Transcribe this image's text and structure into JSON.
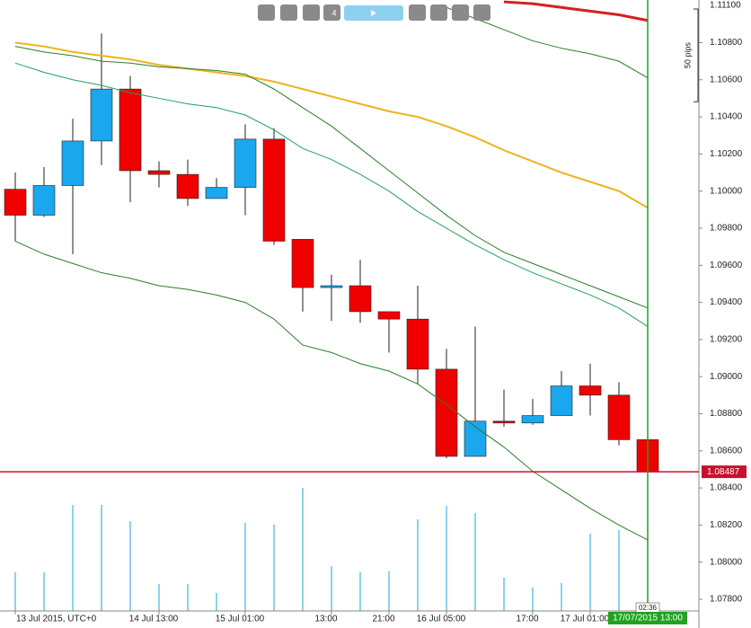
{
  "chart_data": {
    "type": "candlestick",
    "categories": [
      "13 Jul 2015, UTC+0",
      null,
      null,
      null,
      null,
      "14 Jul 13:00",
      null,
      null,
      "15 Jul 01:00",
      null,
      null,
      "13:00",
      null,
      "21:00",
      null,
      "16 Jul 05:00",
      null,
      null,
      "17:00",
      null,
      "17 Jul 01:00",
      null,
      null
    ],
    "open": [
      1.1001,
      1.0987,
      1.1003,
      1.1027,
      1.1055,
      1.1011,
      1.1009,
      1.0996,
      1.1002,
      1.1028,
      1.0974,
      1.0948,
      1.0949,
      1.0935,
      1.0931,
      1.0904,
      1.0857,
      1.0876,
      1.0875,
      1.0879,
      1.0895,
      1.089,
      1.0866
    ],
    "high": [
      1.101,
      1.1013,
      1.1039,
      1.1085,
      1.1062,
      1.1016,
      1.1017,
      1.1007,
      1.1036,
      1.1034,
      1.0974,
      1.0955,
      1.0963,
      1.0935,
      1.0949,
      1.0915,
      1.0927,
      1.0893,
      1.0888,
      1.0903,
      1.0907,
      1.0897,
      1.0868
    ],
    "low": [
      1.0973,
      1.0986,
      1.0966,
      1.1014,
      1.0994,
      1.1002,
      1.0992,
      1.0996,
      1.0987,
      1.0971,
      1.0935,
      1.093,
      1.0929,
      1.0913,
      1.0896,
      1.0856,
      1.0857,
      1.0873,
      1.0874,
      1.0879,
      1.0879,
      1.0863,
      1.0849
    ],
    "close": [
      1.0987,
      1.1003,
      1.1027,
      1.1055,
      1.1011,
      1.1009,
      1.0996,
      1.1002,
      1.1028,
      1.0973,
      1.0948,
      1.0949,
      1.0935,
      1.0931,
      1.0904,
      1.0857,
      1.0876,
      1.0875,
      1.0879,
      1.0895,
      1.089,
      1.0866,
      1.08487
    ],
    "up_color": "#1aa7ee",
    "down_color": "#f00000",
    "volume": [
      43,
      43,
      118,
      118,
      100,
      30,
      30,
      20,
      98,
      96,
      137,
      50,
      43,
      44,
      102,
      117,
      109,
      37,
      26,
      31,
      86,
      90,
      null
    ],
    "volume_color": "#3ab8e0",
    "volume_lim": [
      0,
      140
    ],
    "series": [
      {
        "color": "#d42020",
        "width": 3,
        "values": [
          null,
          null,
          null,
          null,
          null,
          null,
          null,
          null,
          null,
          null,
          null,
          null,
          null,
          null,
          null,
          null,
          null,
          1.1102,
          1.1101,
          1.1099,
          1.1097,
          1.1095,
          1.1092
        ]
      },
      {
        "color": "#f0b21c",
        "width": 2,
        "values": [
          1.108,
          1.1078,
          1.1075,
          1.1073,
          1.1071,
          1.1068,
          1.1066,
          1.1064,
          1.1062,
          1.1059,
          1.1055,
          1.1051,
          1.1047,
          1.1043,
          1.104,
          1.1035,
          1.1029,
          1.1022,
          1.1016,
          1.101,
          1.1005,
          1.1,
          1.0991
        ]
      },
      {
        "color": "#2a7f2a",
        "width": 1,
        "values": [
          1.1078,
          1.1075,
          1.1073,
          1.107,
          1.1069,
          1.1067,
          1.1066,
          1.1065,
          1.1063,
          1.1055,
          1.1045,
          1.1035,
          1.1023,
          1.1011,
          1.0999,
          1.0987,
          1.0976,
          1.0967,
          1.0961,
          1.0955,
          1.0949,
          1.0943,
          1.0937
        ]
      },
      {
        "color": "#22a060",
        "width": 1,
        "values": [
          1.1069,
          1.1064,
          1.106,
          1.1057,
          1.1053,
          1.105,
          1.1047,
          1.1045,
          1.1041,
          1.1033,
          1.1023,
          1.1017,
          1.1009,
          1.1,
          1.0989,
          1.098,
          1.0971,
          1.0963,
          1.0956,
          1.095,
          1.0944,
          1.0937,
          1.0927
        ]
      },
      {
        "color": "#2a7f2a",
        "width": 1,
        "values": [
          null,
          null,
          null,
          null,
          null,
          null,
          null,
          null,
          null,
          null,
          null,
          null,
          null,
          null,
          null,
          1.1099,
          1.1093,
          1.1087,
          1.1081,
          1.1077,
          1.1074,
          1.107,
          1.1061
        ]
      },
      {
        "color": "#2a7f2a",
        "width": 1,
        "values": [
          1.0973,
          1.0966,
          1.0961,
          1.0956,
          1.0953,
          1.0949,
          1.0947,
          1.0944,
          1.094,
          1.0931,
          1.0917,
          1.0913,
          1.0907,
          1.0903,
          1.0896,
          1.0885,
          1.0873,
          1.0862,
          1.0849,
          1.0839,
          1.0829,
          1.082,
          1.0812
        ]
      }
    ],
    "ylim": [
      1.07737,
      1.1103
    ],
    "yticks": [
      {
        "value": 1.111,
        "label": "1.11100"
      },
      {
        "value": 1.108,
        "label": "1.10800"
      },
      {
        "value": 1.106,
        "label": "1.10600"
      },
      {
        "value": 1.104,
        "label": "1.10400"
      },
      {
        "value": 1.102,
        "label": "1.10200"
      },
      {
        "value": 1.1,
        "label": "1.10000"
      },
      {
        "value": 1.098,
        "label": "1.09800"
      },
      {
        "value": 1.096,
        "label": "1.09600"
      },
      {
        "value": 1.094,
        "label": "1.09400"
      },
      {
        "value": 1.092,
        "label": "1.09200"
      },
      {
        "value": 1.09,
        "label": "1.09000"
      },
      {
        "value": 1.088,
        "label": "1.08800"
      },
      {
        "value": 1.086,
        "label": "1.08600"
      },
      {
        "value": 1.084,
        "label": "1.08400"
      },
      {
        "value": 1.082,
        "label": "1.08200"
      },
      {
        "value": 1.08,
        "label": "1.08000"
      },
      {
        "value": 1.078,
        "label": "1.07800"
      }
    ],
    "last_price": {
      "value": 1.08487,
      "label": "1.08487",
      "color": "#c8102e"
    },
    "scale_bar": {
      "value": 0.005,
      "label": "50 pips"
    },
    "cursor": {
      "time": "17/07/2015 13:00",
      "countdown": "02:36",
      "color": "#1fa31f"
    },
    "toolbar": {
      "period": "4"
    }
  }
}
